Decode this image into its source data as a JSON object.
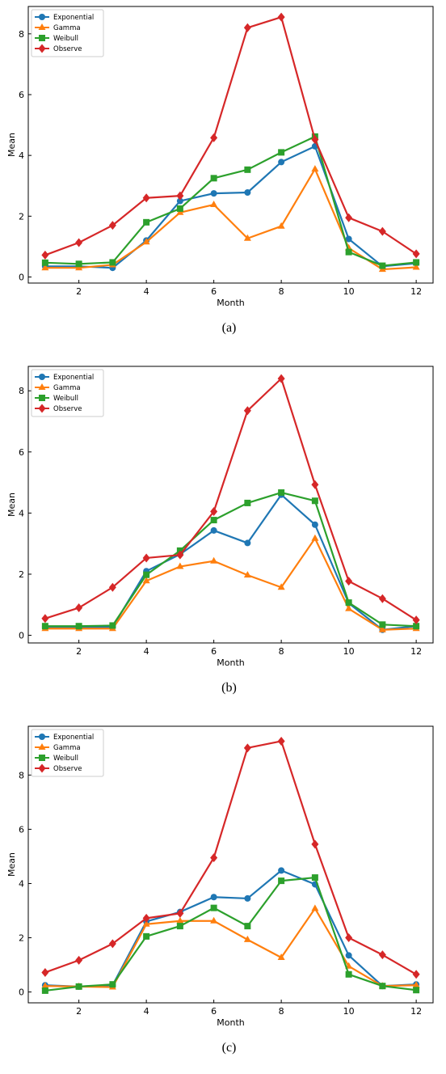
{
  "chart_data": [
    {
      "type": "line",
      "panel_label": "(a)",
      "xlabel": "Month",
      "ylabel": "Mean",
      "xlim": [
        0.5,
        12.5
      ],
      "ylim": [
        -0.2,
        8.9
      ],
      "xticks": [
        2,
        4,
        6,
        8,
        10,
        12
      ],
      "yticks": [
        0,
        2,
        4,
        6,
        8
      ],
      "legend_position": "top-left",
      "x": [
        1,
        2,
        3,
        4,
        5,
        6,
        7,
        8,
        9,
        10,
        11,
        12
      ],
      "series": [
        {
          "name": "Exponential",
          "color": "#1f77b4",
          "marker": "circle",
          "values": [
            0.35,
            0.35,
            0.3,
            1.2,
            2.5,
            2.75,
            2.78,
            3.78,
            4.3,
            1.25,
            0.35,
            0.45
          ]
        },
        {
          "name": "Gamma",
          "color": "#ff7f0e",
          "marker": "triangle",
          "values": [
            0.3,
            0.3,
            0.4,
            1.15,
            2.12,
            2.38,
            1.27,
            1.67,
            3.55,
            0.95,
            0.25,
            0.32
          ]
        },
        {
          "name": "Weibull",
          "color": "#2ca02c",
          "marker": "square",
          "values": [
            0.47,
            0.43,
            0.48,
            1.8,
            2.25,
            3.25,
            3.53,
            4.1,
            4.62,
            0.82,
            0.37,
            0.48
          ]
        },
        {
          "name": "Observe",
          "color": "#d62728",
          "marker": "diamond",
          "values": [
            0.72,
            1.13,
            1.7,
            2.6,
            2.67,
            4.58,
            8.2,
            8.55,
            4.52,
            1.95,
            1.5,
            0.76
          ]
        }
      ]
    },
    {
      "type": "line",
      "panel_label": "(b)",
      "xlabel": "Month",
      "ylabel": "Mean",
      "xlim": [
        0.5,
        12.5
      ],
      "ylim": [
        -0.25,
        8.8
      ],
      "xticks": [
        2,
        4,
        6,
        8,
        10,
        12
      ],
      "yticks": [
        0,
        2,
        4,
        6,
        8
      ],
      "legend_position": "top-left",
      "x": [
        1,
        2,
        3,
        4,
        5,
        6,
        7,
        8,
        9,
        10,
        11,
        12
      ],
      "series": [
        {
          "name": "Exponential",
          "color": "#1f77b4",
          "marker": "circle",
          "values": [
            0.27,
            0.27,
            0.27,
            2.1,
            2.65,
            3.43,
            3.02,
            4.6,
            3.62,
            1.05,
            0.18,
            0.3
          ]
        },
        {
          "name": "Gamma",
          "color": "#ff7f0e",
          "marker": "triangle",
          "values": [
            0.22,
            0.22,
            0.22,
            1.78,
            2.25,
            2.43,
            1.97,
            1.57,
            3.17,
            0.87,
            0.18,
            0.22
          ]
        },
        {
          "name": "Weibull",
          "color": "#2ca02c",
          "marker": "square",
          "values": [
            0.3,
            0.3,
            0.32,
            1.98,
            2.77,
            3.77,
            4.33,
            4.67,
            4.4,
            1.07,
            0.35,
            0.3
          ]
        },
        {
          "name": "Observe",
          "color": "#d62728",
          "marker": "diamond",
          "values": [
            0.55,
            0.9,
            1.57,
            2.53,
            2.63,
            4.05,
            7.35,
            8.4,
            4.93,
            1.77,
            1.2,
            0.5
          ]
        }
      ]
    },
    {
      "type": "line",
      "panel_label": "(c)",
      "xlabel": "Month",
      "ylabel": "Mean",
      "xlim": [
        0.5,
        12.5
      ],
      "ylim": [
        -0.4,
        9.8
      ],
      "xticks": [
        2,
        4,
        6,
        8,
        10,
        12
      ],
      "yticks": [
        0,
        2,
        4,
        6,
        8
      ],
      "legend_position": "top-left",
      "x": [
        1,
        2,
        3,
        4,
        5,
        6,
        7,
        8,
        9,
        10,
        11,
        12
      ],
      "series": [
        {
          "name": "Exponential",
          "color": "#1f77b4",
          "marker": "circle",
          "values": [
            0.25,
            0.2,
            0.25,
            2.6,
            2.95,
            3.5,
            3.45,
            4.48,
            3.97,
            1.35,
            0.22,
            0.28
          ]
        },
        {
          "name": "Gamma",
          "color": "#ff7f0e",
          "marker": "triangle",
          "values": [
            0.22,
            0.2,
            0.18,
            2.5,
            2.62,
            2.62,
            1.93,
            1.27,
            3.08,
            0.95,
            0.22,
            0.25
          ]
        },
        {
          "name": "Weibull",
          "color": "#2ca02c",
          "marker": "square",
          "values": [
            0.05,
            0.2,
            0.28,
            2.05,
            2.43,
            3.1,
            2.43,
            4.1,
            4.22,
            0.65,
            0.22,
            0.07
          ]
        },
        {
          "name": "Observe",
          "color": "#d62728",
          "marker": "diamond",
          "values": [
            0.72,
            1.17,
            1.78,
            2.72,
            2.9,
            4.95,
            9.0,
            9.25,
            5.45,
            2.0,
            1.37,
            0.65
          ]
        }
      ]
    }
  ]
}
